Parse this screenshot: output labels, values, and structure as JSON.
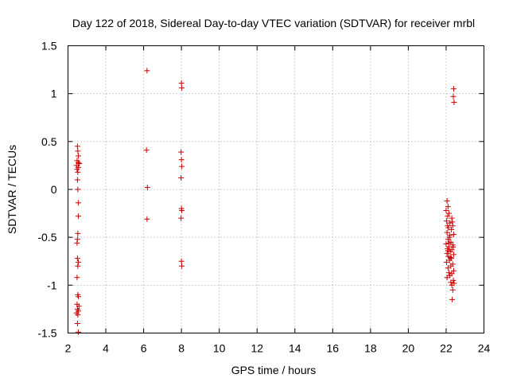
{
  "chart_data": {
    "type": "scatter",
    "title": "Day 122 of 2018, Sidereal Day-to-day VTEC variation (SDTVAR) for receiver mrbl",
    "xlabel": "GPS time / hours",
    "ylabel": "SDTVAR / TECUs",
    "xlim": [
      2,
      24
    ],
    "ylim": [
      -1.5,
      1.5
    ],
    "xticks": [
      2,
      4,
      6,
      8,
      10,
      12,
      14,
      16,
      18,
      20,
      22,
      24
    ],
    "yticks": [
      -1.5,
      -1,
      -0.5,
      0,
      0.5,
      1,
      1.5
    ],
    "xtick_labels": [
      "2",
      "4",
      "6",
      "8",
      "10",
      "12",
      "14",
      "16",
      "18",
      "20",
      "22",
      "24"
    ],
    "ytick_labels": [
      "-1.5",
      "-1",
      "-0.5",
      "0",
      "0.5",
      "1",
      "1.5"
    ],
    "grid": true,
    "marker": "+",
    "color": "#cc0000",
    "series": [
      {
        "name": "SDTVAR",
        "points": [
          [
            2.5,
            0.45
          ],
          [
            2.52,
            0.4
          ],
          [
            2.55,
            0.35
          ],
          [
            2.48,
            0.3
          ],
          [
            2.55,
            0.28
          ],
          [
            2.6,
            0.27
          ],
          [
            2.45,
            0.25
          ],
          [
            2.55,
            0.23
          ],
          [
            2.48,
            0.21
          ],
          [
            2.52,
            0.18
          ],
          [
            2.5,
            0.1
          ],
          [
            2.52,
            0.0
          ],
          [
            2.55,
            -0.14
          ],
          [
            2.55,
            -0.28
          ],
          [
            2.52,
            -0.46
          ],
          [
            2.5,
            -0.52
          ],
          [
            2.48,
            -0.56
          ],
          [
            2.5,
            -0.72
          ],
          [
            2.55,
            -0.76
          ],
          [
            2.52,
            -0.8
          ],
          [
            2.48,
            -0.92
          ],
          [
            2.52,
            -1.1
          ],
          [
            2.55,
            -1.12
          ],
          [
            2.48,
            -1.2
          ],
          [
            2.58,
            -1.22
          ],
          [
            2.5,
            -1.25
          ],
          [
            2.55,
            -1.27
          ],
          [
            2.45,
            -1.29
          ],
          [
            2.52,
            -1.31
          ],
          [
            2.5,
            -1.4
          ],
          [
            2.55,
            -1.49
          ],
          [
            6.18,
            1.24
          ],
          [
            6.15,
            0.41
          ],
          [
            6.2,
            0.02
          ],
          [
            6.18,
            -0.31
          ],
          [
            8.0,
            1.11
          ],
          [
            8.02,
            1.06
          ],
          [
            7.98,
            0.39
          ],
          [
            8.0,
            0.31
          ],
          [
            8.02,
            0.24
          ],
          [
            7.98,
            0.12
          ],
          [
            8.0,
            -0.2
          ],
          [
            8.02,
            -0.22
          ],
          [
            7.98,
            -0.3
          ],
          [
            8.0,
            -0.75
          ],
          [
            8.02,
            -0.8
          ],
          [
            22.4,
            1.05
          ],
          [
            22.38,
            0.97
          ],
          [
            22.42,
            0.91
          ],
          [
            22.05,
            -0.12
          ],
          [
            22.1,
            -0.18
          ],
          [
            22.0,
            -0.22
          ],
          [
            22.15,
            -0.25
          ],
          [
            22.08,
            -0.28
          ],
          [
            22.3,
            -0.3
          ],
          [
            22.02,
            -0.33
          ],
          [
            22.2,
            -0.35
          ],
          [
            22.35,
            -0.38
          ],
          [
            22.12,
            -0.4
          ],
          [
            22.28,
            -0.42
          ],
          [
            22.05,
            -0.45
          ],
          [
            22.4,
            -0.47
          ],
          [
            22.18,
            -0.5
          ],
          [
            22.1,
            -0.52
          ],
          [
            22.25,
            -0.55
          ],
          [
            22.0,
            -0.57
          ],
          [
            22.35,
            -0.58
          ],
          [
            22.15,
            -0.6
          ],
          [
            22.08,
            -0.62
          ],
          [
            22.3,
            -0.63
          ],
          [
            22.22,
            -0.65
          ],
          [
            22.05,
            -0.67
          ],
          [
            22.4,
            -0.68
          ],
          [
            22.12,
            -0.7
          ],
          [
            22.28,
            -0.72
          ],
          [
            22.18,
            -0.74
          ],
          [
            22.02,
            -0.76
          ],
          [
            22.35,
            -0.78
          ],
          [
            22.25,
            -0.8
          ],
          [
            22.1,
            -0.82
          ],
          [
            22.4,
            -0.85
          ],
          [
            22.15,
            -0.87
          ],
          [
            22.3,
            -0.88
          ],
          [
            22.2,
            -0.9
          ],
          [
            22.05,
            -0.92
          ],
          [
            22.38,
            -0.95
          ],
          [
            22.25,
            -0.97
          ],
          [
            22.42,
            -0.98
          ],
          [
            22.3,
            -1.0
          ],
          [
            22.35,
            -1.05
          ],
          [
            22.32,
            -1.15
          ],
          [
            22.1,
            -0.64
          ],
          [
            22.2,
            -0.48
          ],
          [
            22.33,
            -0.34
          ],
          [
            22.08,
            -0.38
          ],
          [
            22.22,
            -0.71
          ],
          [
            22.38,
            -0.6
          ],
          [
            22.15,
            -0.56
          ]
        ]
      }
    ]
  }
}
